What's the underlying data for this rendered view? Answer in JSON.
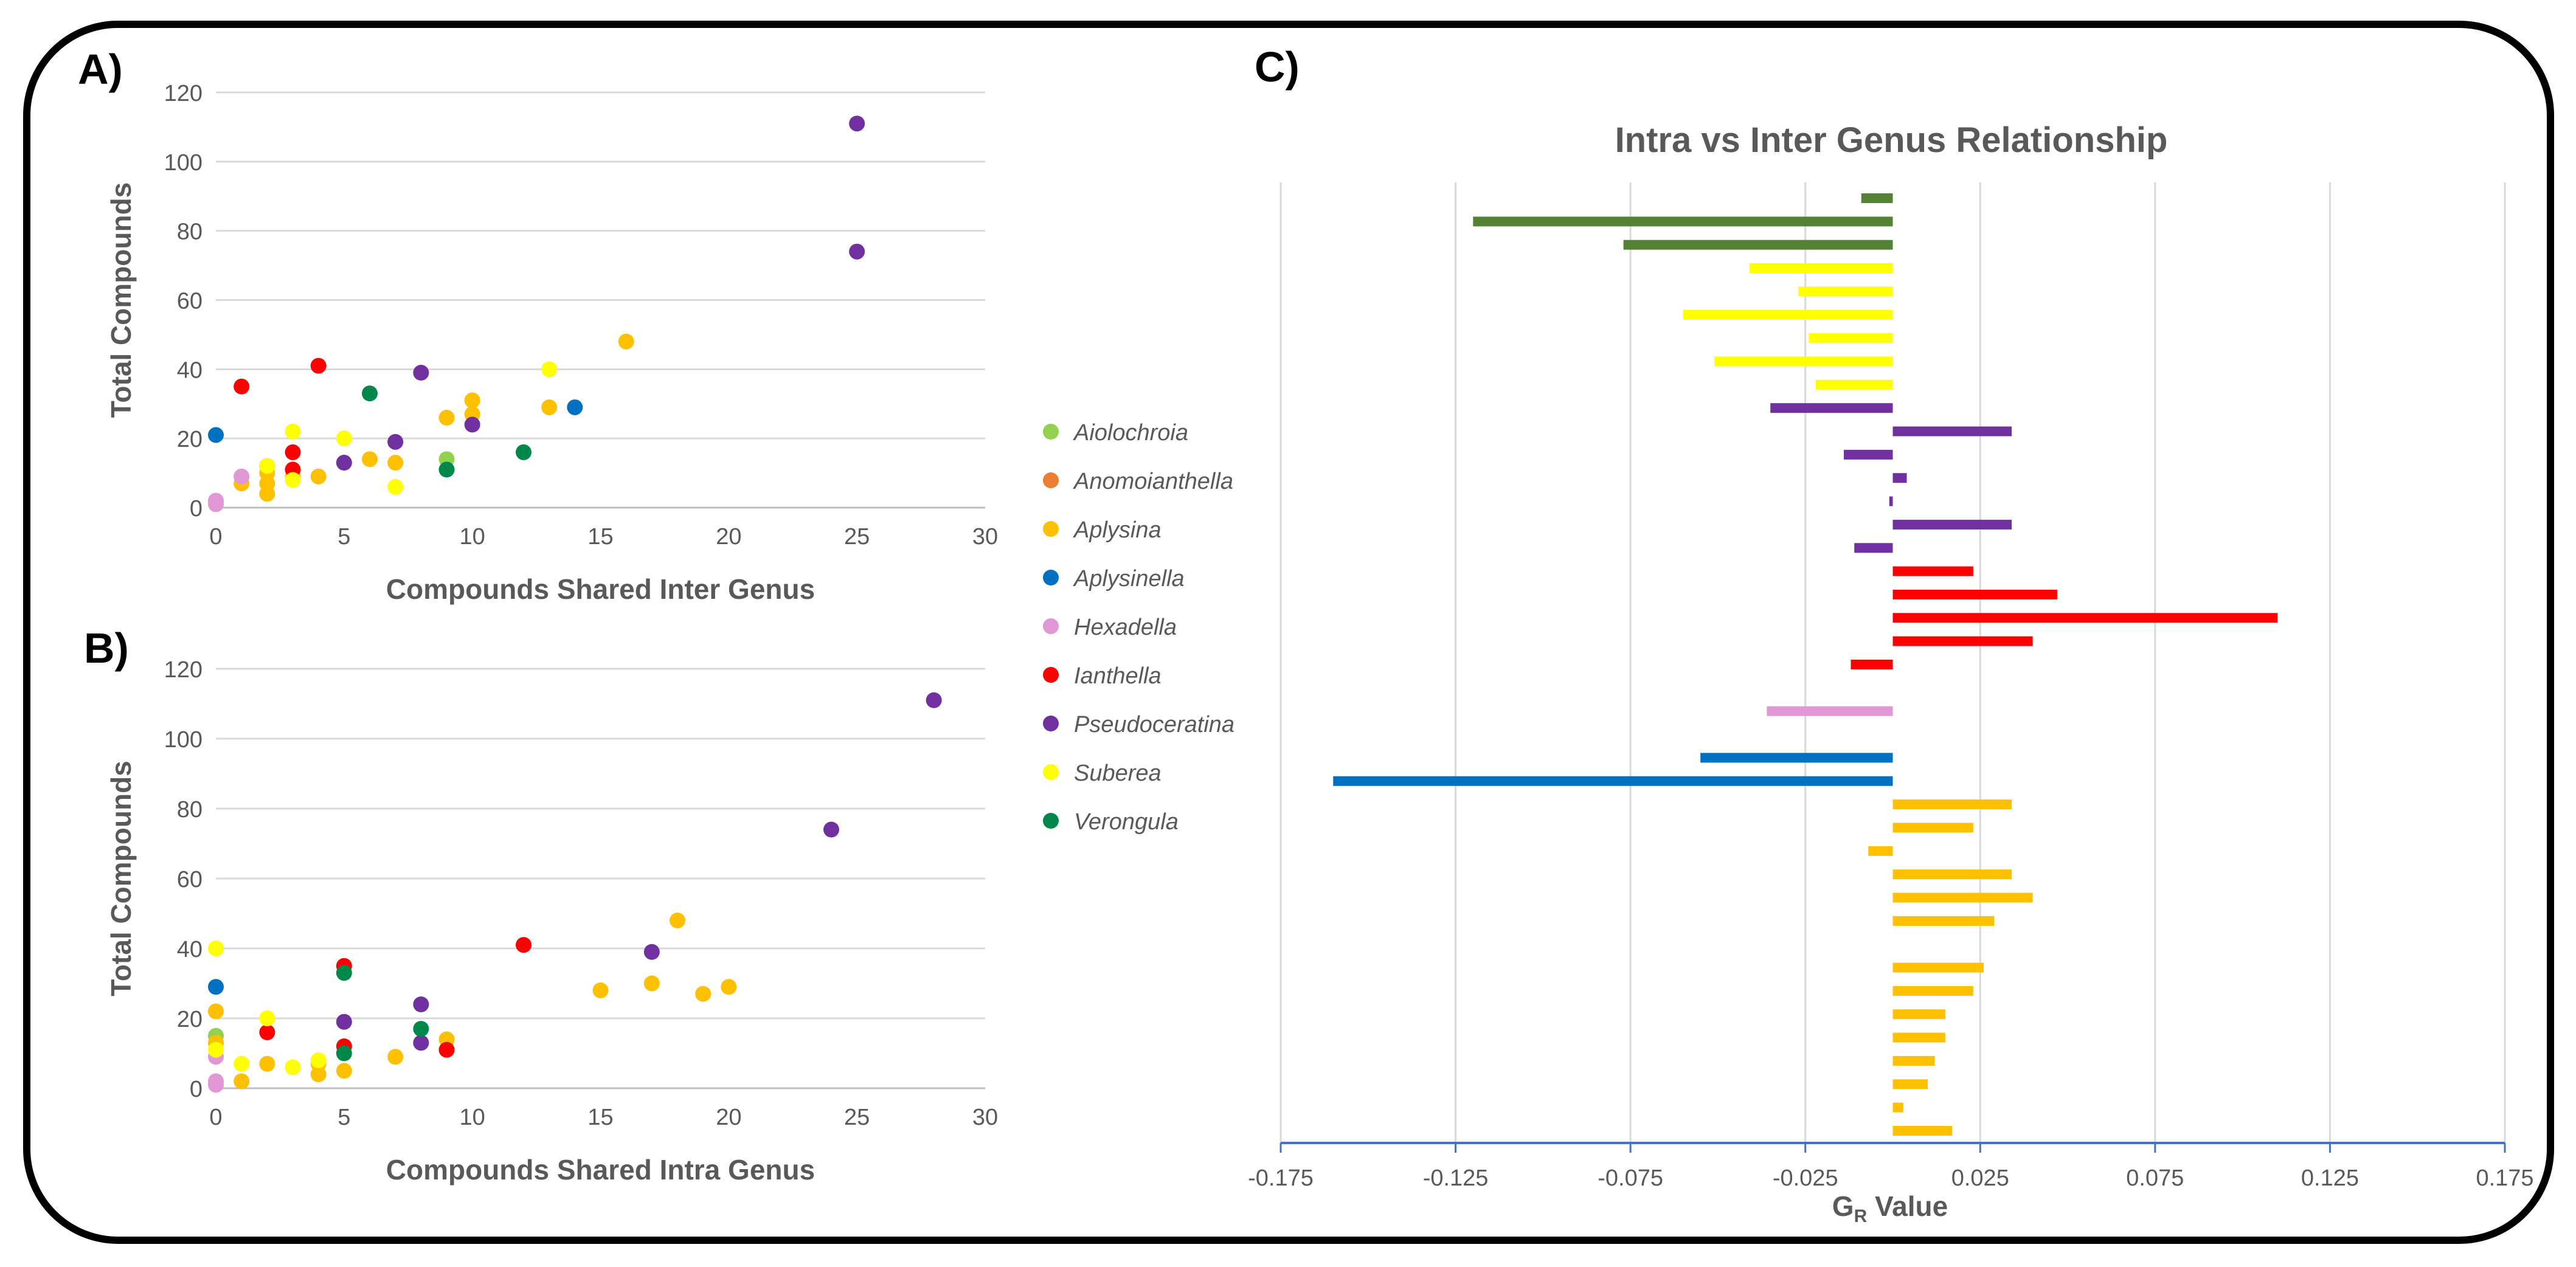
{
  "panels": {
    "a": "A)",
    "b": "B)",
    "c": "C)"
  },
  "colors": {
    "Aiolochroia": "#92d050",
    "Anomoianthella": "#ed7d31",
    "Aplysina": "#ffc000",
    "Aplysinella": "#0070c0",
    "Hexadella": "#e196d6",
    "Ianthella": "#ff0000",
    "Pseudoceratina": "#7030a0",
    "Suberea": "#ffff00",
    "Verongula": "#00884a",
    "VerongulaBar": "#548235",
    "Aplysina_bar": "#ffc000"
  },
  "legend": [
    "Aiolochroia",
    "Anomoianthella",
    "Aplysina",
    "Aplysinella",
    "Hexadella",
    "Ianthella",
    "Pseudoceratina",
    "Suberea",
    "Verongula"
  ],
  "chart_data": [
    {
      "id": "A",
      "type": "scatter",
      "title": "",
      "xlabel": "Compounds Shared Inter Genus",
      "ylabel": "Total Compounds",
      "xlim": [
        0,
        30
      ],
      "ylim": [
        0,
        120
      ],
      "xticks": [
        "0",
        "5",
        "10",
        "15",
        "20",
        "25",
        "30"
      ],
      "yticks": [
        "0",
        "20",
        "40",
        "60",
        "80",
        "100",
        "120"
      ],
      "grid": "horizontal",
      "series": [
        {
          "name": "Aiolochroia",
          "points": [
            [
              9,
              14
            ]
          ]
        },
        {
          "name": "Anomoianthella",
          "points": []
        },
        {
          "name": "Aplysina",
          "points": [
            [
              1,
              7
            ],
            [
              2,
              4
            ],
            [
              2,
              7
            ],
            [
              2,
              10
            ],
            [
              3,
              9
            ],
            [
              4,
              9
            ],
            [
              6,
              14
            ],
            [
              7,
              13
            ],
            [
              9,
              26
            ],
            [
              10,
              27
            ],
            [
              10,
              31
            ],
            [
              13,
              29
            ],
            [
              16,
              48
            ]
          ]
        },
        {
          "name": "Aplysinella",
          "points": [
            [
              0,
              21
            ],
            [
              14,
              29
            ]
          ]
        },
        {
          "name": "Hexadella",
          "points": [
            [
              0,
              1
            ],
            [
              0,
              2
            ],
            [
              1,
              9
            ]
          ]
        },
        {
          "name": "Ianthella",
          "points": [
            [
              1,
              35
            ],
            [
              2,
              12
            ],
            [
              3,
              11
            ],
            [
              3,
              16
            ],
            [
              4,
              41
            ]
          ]
        },
        {
          "name": "Pseudoceratina",
          "points": [
            [
              5,
              13
            ],
            [
              7,
              19
            ],
            [
              8,
              39
            ],
            [
              10,
              24
            ],
            [
              25,
              74
            ],
            [
              25,
              111
            ]
          ]
        },
        {
          "name": "Suberea",
          "points": [
            [
              2,
              12
            ],
            [
              3,
              8
            ],
            [
              3,
              22
            ],
            [
              5,
              20
            ],
            [
              7,
              6
            ],
            [
              13,
              40
            ]
          ]
        },
        {
          "name": "Verongula",
          "points": [
            [
              6,
              33
            ],
            [
              9,
              11
            ],
            [
              12,
              16
            ]
          ]
        }
      ]
    },
    {
      "id": "B",
      "type": "scatter",
      "title": "",
      "xlabel": "Compounds Shared Intra Genus",
      "ylabel": "Total Compounds",
      "xlim": [
        0,
        30
      ],
      "ylim": [
        0,
        120
      ],
      "xticks": [
        "0",
        "5",
        "10",
        "15",
        "20",
        "25",
        "30"
      ],
      "yticks": [
        "0",
        "20",
        "40",
        "60",
        "80",
        "100",
        "120"
      ],
      "grid": "horizontal",
      "series": [
        {
          "name": "Aiolochroia",
          "points": [
            [
              0,
              15
            ]
          ]
        },
        {
          "name": "Anomoianthella",
          "points": []
        },
        {
          "name": "Aplysina",
          "points": [
            [
              0,
              22
            ],
            [
              0,
              13
            ],
            [
              1,
              2
            ],
            [
              2,
              7
            ],
            [
              4,
              4
            ],
            [
              4,
              7
            ],
            [
              5,
              5
            ],
            [
              7,
              9
            ],
            [
              9,
              14
            ],
            [
              15,
              28
            ],
            [
              17,
              30
            ],
            [
              18,
              48
            ],
            [
              19,
              27
            ],
            [
              20,
              29
            ]
          ]
        },
        {
          "name": "Aplysinella",
          "points": [
            [
              0,
              29
            ]
          ]
        },
        {
          "name": "Hexadella",
          "points": [
            [
              0,
              1
            ],
            [
              0,
              2
            ],
            [
              0,
              9
            ]
          ]
        },
        {
          "name": "Ianthella",
          "points": [
            [
              2,
              16
            ],
            [
              5,
              12
            ],
            [
              5,
              35
            ],
            [
              9,
              11
            ],
            [
              12,
              41
            ]
          ]
        },
        {
          "name": "Pseudoceratina",
          "points": [
            [
              5,
              19
            ],
            [
              8,
              13
            ],
            [
              8,
              24
            ],
            [
              17,
              39
            ],
            [
              24,
              74
            ],
            [
              28,
              111
            ]
          ]
        },
        {
          "name": "Suberea",
          "points": [
            [
              0,
              40
            ],
            [
              0,
              11
            ],
            [
              1,
              7
            ],
            [
              2,
              20
            ],
            [
              3,
              6
            ],
            [
              4,
              8
            ]
          ]
        },
        {
          "name": "Verongula",
          "points": [
            [
              5,
              10
            ],
            [
              5,
              33
            ],
            [
              8,
              17
            ]
          ]
        }
      ]
    },
    {
      "id": "C",
      "type": "bar",
      "orientation": "horizontal",
      "title": "Intra vs Inter Genus Relationship",
      "xlabel_main": "G",
      "xlabel_sub": "R",
      "xlabel_tail": " Value",
      "xlim": [
        -0.175,
        0.175
      ],
      "xticks": [
        "-0.175",
        "-0.125",
        "-0.075",
        "-0.025",
        "0.025",
        "0.075",
        "0.125",
        "0.175"
      ],
      "grid": "vertical",
      "bars": [
        {
          "group": "VerongulaBar",
          "value": -0.009
        },
        {
          "group": "VerongulaBar",
          "value": -0.12
        },
        {
          "group": "VerongulaBar",
          "value": -0.077
        },
        {
          "group": "Suberea",
          "value": -0.041
        },
        {
          "group": "Suberea",
          "value": -0.027
        },
        {
          "group": "Suberea",
          "value": -0.06
        },
        {
          "group": "Suberea",
          "value": -0.024
        },
        {
          "group": "Suberea",
          "value": -0.051
        },
        {
          "group": "Suberea",
          "value": -0.022
        },
        {
          "group": "Pseudoceratina",
          "value": -0.035
        },
        {
          "group": "Pseudoceratina",
          "value": 0.034
        },
        {
          "group": "Pseudoceratina",
          "value": -0.014
        },
        {
          "group": "Pseudoceratina",
          "value": 0.004
        },
        {
          "group": "Pseudoceratina",
          "value": -0.001
        },
        {
          "group": "Pseudoceratina",
          "value": 0.034
        },
        {
          "group": "Pseudoceratina",
          "value": -0.011
        },
        {
          "group": "Ianthella",
          "value": 0.023
        },
        {
          "group": "Ianthella",
          "value": 0.047
        },
        {
          "group": "Ianthella",
          "value": 0.11
        },
        {
          "group": "Ianthella",
          "value": 0.04
        },
        {
          "group": "Ianthella",
          "value": -0.012
        },
        {
          "group": "Hexadella",
          "value": 0.0
        },
        {
          "group": "Hexadella",
          "value": -0.036
        },
        {
          "group": "Hexadella",
          "value": 0.0
        },
        {
          "group": "Aplysinella",
          "value": -0.055
        },
        {
          "group": "Aplysinella",
          "value": -0.16
        },
        {
          "group": "Aplysina",
          "value": 0.034
        },
        {
          "group": "Aplysina",
          "value": 0.023
        },
        {
          "group": "Aplysina",
          "value": -0.007
        },
        {
          "group": "Aplysina",
          "value": 0.034
        },
        {
          "group": "Aplysina",
          "value": 0.04
        },
        {
          "group": "Aplysina",
          "value": 0.029
        },
        {
          "group": "Aplysina",
          "value": 0.0
        },
        {
          "group": "Aplysina",
          "value": 0.026
        },
        {
          "group": "Aplysina",
          "value": 0.023
        },
        {
          "group": "Aplysina",
          "value": 0.015
        },
        {
          "group": "Aplysina",
          "value": 0.015
        },
        {
          "group": "Aplysina",
          "value": 0.012
        },
        {
          "group": "Aplysina",
          "value": 0.01
        },
        {
          "group": "Aplysina",
          "value": 0.003
        },
        {
          "group": "Aplysina",
          "value": 0.017
        }
      ]
    }
  ]
}
